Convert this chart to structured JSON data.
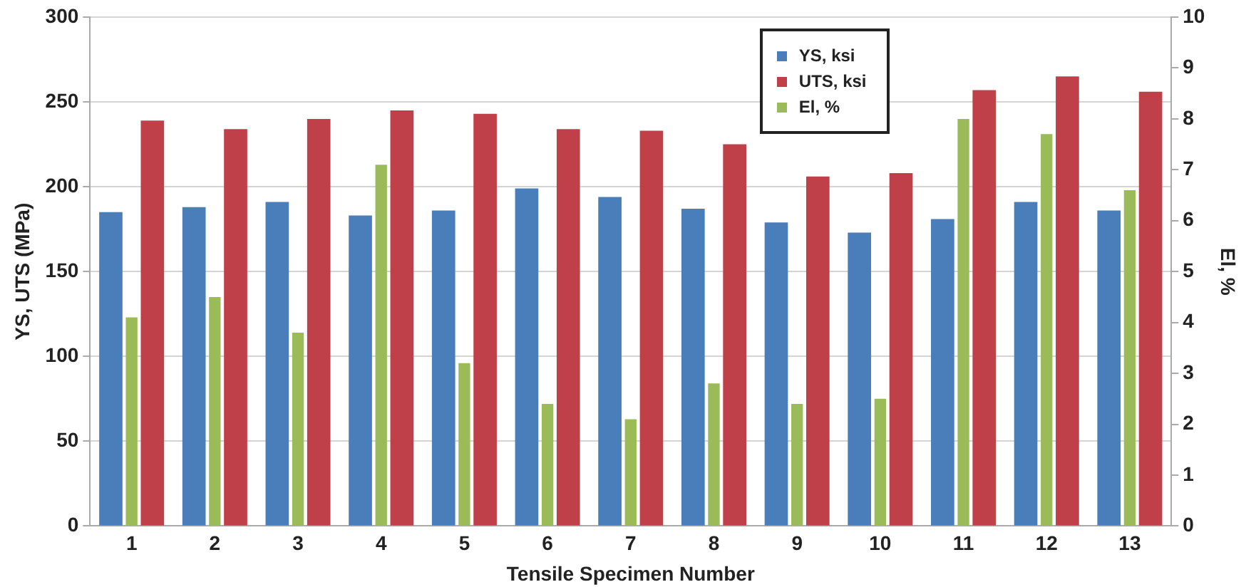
{
  "chart_data": {
    "type": "bar",
    "xlabel": "Tensile Specimen Number",
    "ylabel": "YS, UTS (MPa)",
    "y2label": "El, %",
    "categories": [
      "1",
      "2",
      "3",
      "4",
      "5",
      "6",
      "7",
      "8",
      "9",
      "10",
      "11",
      "12",
      "13"
    ],
    "series": [
      {
        "name": "YS, ksi",
        "color": "#4a7ebb",
        "values": [
          185,
          188,
          191,
          183,
          186,
          199,
          194,
          187,
          179,
          173,
          181,
          191,
          186
        ]
      },
      {
        "name": "UTS, ksi",
        "color": "#c0404a",
        "values": [
          239,
          234,
          240,
          245,
          243,
          234,
          233,
          225,
          206,
          208,
          257,
          265,
          256
        ]
      },
      {
        "name": "El, %",
        "color": "#9bbb59",
        "axis": "y2",
        "values": [
          4.1,
          4.5,
          3.8,
          7.1,
          3.2,
          2.4,
          2.1,
          2.8,
          2.4,
          2.5,
          8.0,
          7.7,
          6.6
        ]
      }
    ],
    "ylim": [
      0,
      300
    ],
    "yticks": [
      0,
      50,
      100,
      150,
      200,
      250,
      300
    ],
    "y2lim": [
      0,
      10
    ],
    "y2ticks": [
      0,
      1,
      2,
      3,
      4,
      5,
      6,
      7,
      8,
      9,
      10
    ],
    "grid": "y",
    "legend": "top right"
  }
}
